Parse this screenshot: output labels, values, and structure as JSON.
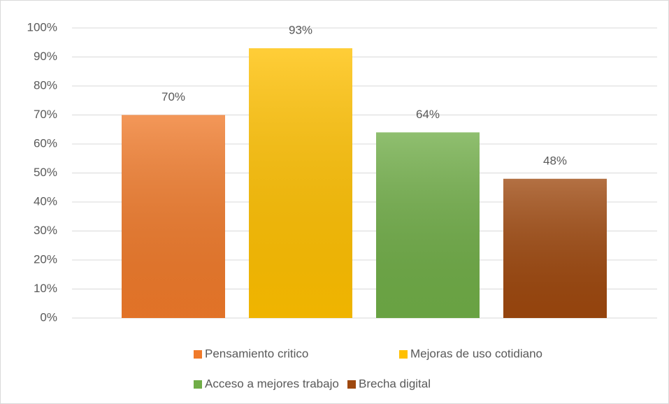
{
  "chart_data": {
    "type": "bar",
    "series": [
      {
        "name": "Pensamiento critico",
        "color": "#f07a2a",
        "values": [
          70
        ],
        "value_labels": [
          "70%"
        ]
      },
      {
        "name": "Mejoras de uso cotidiano",
        "color": "#ffc000",
        "values": [
          93
        ],
        "value_labels": [
          "93%"
        ]
      },
      {
        "name": "Acceso a mejores trabajo",
        "color": "#70ad47",
        "values": [
          64
        ],
        "value_labels": [
          "64%"
        ]
      },
      {
        "name": "Brecha digital",
        "color": "#9e480e",
        "values": [
          48
        ],
        "value_labels": [
          "48%"
        ]
      }
    ],
    "ylim": [
      0,
      100
    ],
    "yticks": [
      {
        "value": 0,
        "label": "0%"
      },
      {
        "value": 10,
        "label": "10%"
      },
      {
        "value": 20,
        "label": "20%"
      },
      {
        "value": 30,
        "label": "30%"
      },
      {
        "value": 40,
        "label": "40%"
      },
      {
        "value": 50,
        "label": "50%"
      },
      {
        "value": 60,
        "label": "60%"
      },
      {
        "value": 70,
        "label": "70%"
      },
      {
        "value": 80,
        "label": "80%"
      },
      {
        "value": 90,
        "label": "90%"
      },
      {
        "value": 100,
        "label": "100%"
      }
    ],
    "grid": true,
    "legend": "bottom"
  }
}
